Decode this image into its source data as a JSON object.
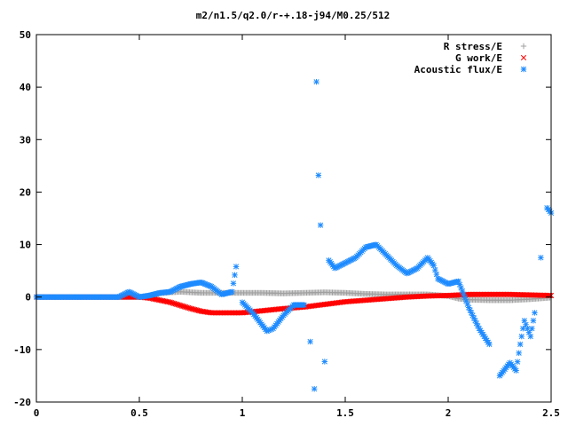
{
  "chart_data": {
    "type": "scatter",
    "title": "m2/n1.5/q2.0/r-+.18-j94/M0.25/512",
    "xlabel": "",
    "ylabel": "",
    "xlim": [
      0,
      2.5
    ],
    "ylim": [
      -20,
      50
    ],
    "grid": false,
    "legend_position": "top-right",
    "x_ticks": [
      0,
      0.5,
      1,
      1.5,
      2,
      2.5
    ],
    "x_tick_labels": [
      "0",
      "0.5",
      "1",
      "1.5",
      "2",
      "2.5"
    ],
    "y_ticks": [
      -20,
      -10,
      0,
      10,
      20,
      30,
      40,
      50
    ],
    "y_tick_labels": [
      "-20",
      "-10",
      "0",
      "10",
      "20",
      "30",
      "40",
      "50"
    ],
    "series": [
      {
        "name": "R stress/E",
        "color": "#a0a0a0",
        "marker": "plus",
        "x": [
          0,
          0.1,
          0.2,
          0.3,
          0.4,
          0.5,
          0.55,
          0.6,
          0.65,
          0.7,
          0.8,
          0.9,
          1.0,
          1.1,
          1.2,
          1.3,
          1.4,
          1.5,
          1.6,
          1.7,
          1.8,
          1.9,
          2.0,
          2.05,
          2.1,
          2.2,
          2.3,
          2.4,
          2.5
        ],
        "y": [
          0,
          0,
          0,
          0,
          0,
          0,
          0.3,
          0.7,
          0.9,
          1.0,
          0.8,
          0.8,
          0.8,
          0.8,
          0.7,
          0.8,
          0.9,
          0.8,
          0.6,
          0.5,
          0.5,
          0.5,
          0.2,
          -0.3,
          -0.5,
          -0.6,
          -0.6,
          -0.4,
          -0.1
        ]
      },
      {
        "name": "G work/E",
        "color": "#ff0000",
        "marker": "cross",
        "x": [
          0,
          0.1,
          0.2,
          0.3,
          0.4,
          0.5,
          0.55,
          0.6,
          0.65,
          0.7,
          0.75,
          0.8,
          0.85,
          0.9,
          1.0,
          1.1,
          1.2,
          1.3,
          1.4,
          1.5,
          1.6,
          1.7,
          1.8,
          1.9,
          2.0,
          2.1,
          2.2,
          2.3,
          2.4,
          2.5
        ],
        "y": [
          0,
          0,
          0,
          0,
          0,
          0,
          -0.2,
          -0.6,
          -1.0,
          -1.6,
          -2.2,
          -2.7,
          -3.0,
          -3.0,
          -3.0,
          -2.6,
          -2.2,
          -1.9,
          -1.4,
          -0.9,
          -0.6,
          -0.3,
          0,
          0.2,
          0.3,
          0.5,
          0.5,
          0.5,
          0.4,
          0.3
        ]
      },
      {
        "name": "Acoustic flux/E",
        "color": "#1e8bff",
        "marker": "star",
        "x": [
          0,
          0.1,
          0.2,
          0.3,
          0.4,
          0.45,
          0.5,
          0.55,
          0.6,
          0.65,
          0.7,
          0.75,
          0.8,
          0.85,
          0.9,
          0.95,
          0.97,
          1.0,
          1.05,
          1.1,
          1.12,
          1.15,
          1.2,
          1.25,
          1.3,
          1.33,
          1.35,
          1.36,
          1.37,
          1.38,
          1.4,
          1.42,
          1.45,
          1.5,
          1.55,
          1.6,
          1.65,
          1.7,
          1.75,
          1.8,
          1.85,
          1.9,
          1.93,
          1.95,
          2.0,
          2.05,
          2.1,
          2.15,
          2.2,
          2.25,
          2.3,
          2.33,
          2.35,
          2.37,
          2.4,
          2.42,
          2.45,
          2.48,
          2.5
        ],
        "y": [
          0,
          0,
          0,
          0,
          0,
          1.0,
          0,
          0.3,
          0.8,
          1.0,
          2.0,
          2.5,
          2.8,
          2.0,
          0.5,
          1.0,
          5.8,
          -1.0,
          -3.0,
          -5.5,
          -6.5,
          -6.0,
          -3.5,
          -1.5,
          -1.5,
          -8.5,
          -17.5,
          41.0,
          23.2,
          13.7,
          -12.3,
          7.0,
          5.5,
          6.5,
          7.5,
          9.5,
          10.0,
          8.0,
          6.0,
          4.5,
          5.5,
          7.5,
          6.0,
          3.5,
          2.5,
          3.0,
          -2.0,
          -6.0,
          -9.0,
          -15.0,
          -12.5,
          -14.0,
          -9.0,
          -4.5,
          -7.5,
          -3.0,
          7.5,
          17.0,
          16.0
        ]
      }
    ]
  }
}
